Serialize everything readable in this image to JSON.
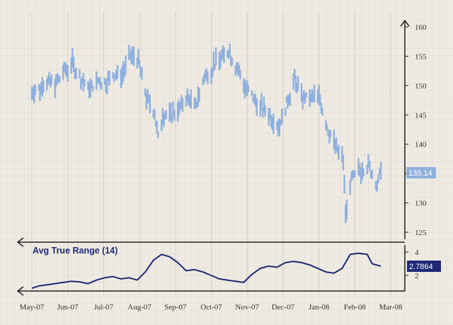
{
  "chart_data": [
    {
      "type": "bar",
      "subtype": "ohlc-price",
      "x_tick_labels": [
        "May-07",
        "Jun-07",
        "Jul-07",
        "Aug-07",
        "Sep-07",
        "Oct-07",
        "Nov-07",
        "Dec-07",
        "Jan-08",
        "Feb-08",
        "Mar-08"
      ],
      "y_ticks": [
        125,
        130,
        135,
        140,
        145,
        150,
        155,
        160
      ],
      "ylim": [
        122,
        161
      ],
      "y_axis_side": "right",
      "last_value_label": "135.14",
      "color": "#8fb0de",
      "anchors": [
        [
          "2007-05-01",
          149
        ],
        [
          "2007-05-08",
          149.5
        ],
        [
          "2007-05-15",
          150.8
        ],
        [
          "2007-05-22",
          150.5
        ],
        [
          "2007-05-29",
          152.5
        ],
        [
          "2007-06-05",
          153.5
        ],
        [
          "2007-06-12",
          151
        ],
        [
          "2007-06-19",
          149.5
        ],
        [
          "2007-06-26",
          151
        ],
        [
          "2007-07-03",
          150.5
        ],
        [
          "2007-07-10",
          152
        ],
        [
          "2007-07-17",
          151.5
        ],
        [
          "2007-07-24",
          155
        ],
        [
          "2007-07-31",
          154.5
        ],
        [
          "2007-08-07",
          148
        ],
        [
          "2007-08-14",
          145.5
        ],
        [
          "2007-08-17",
          141
        ],
        [
          "2007-08-21",
          145
        ],
        [
          "2007-08-28",
          145
        ],
        [
          "2007-09-04",
          146
        ],
        [
          "2007-09-11",
          148
        ],
        [
          "2007-09-18",
          146.5
        ],
        [
          "2007-09-25",
          151.5
        ],
        [
          "2007-10-02",
          153
        ],
        [
          "2007-10-09",
          155
        ],
        [
          "2007-10-16",
          156
        ],
        [
          "2007-10-23",
          153
        ],
        [
          "2007-10-30",
          150
        ],
        [
          "2007-11-06",
          148
        ],
        [
          "2007-11-13",
          146
        ],
        [
          "2007-11-20",
          145
        ],
        [
          "2007-11-27",
          143
        ],
        [
          "2007-12-04",
          147
        ],
        [
          "2007-12-11",
          151
        ],
        [
          "2007-12-18",
          148
        ],
        [
          "2007-12-25",
          147.5
        ],
        [
          "2008-01-01",
          148.5
        ],
        [
          "2008-01-08",
          143
        ],
        [
          "2008-01-15",
          140
        ],
        [
          "2008-01-22",
          137
        ],
        [
          "2008-01-24",
          128
        ],
        [
          "2008-01-29",
          134
        ],
        [
          "2008-02-05",
          135.5
        ],
        [
          "2008-02-12",
          136.5
        ],
        [
          "2008-02-19",
          133
        ],
        [
          "2008-02-22",
          135.14
        ]
      ]
    },
    {
      "type": "line",
      "title": "Avg True Range (14)",
      "x_tick_labels": [
        "May-07",
        "Jun-07",
        "Jul-07",
        "Aug-07",
        "Sep-07",
        "Oct-07",
        "Nov-07",
        "Dec-07",
        "Jan-08",
        "Feb-08",
        "Mar-08"
      ],
      "y_ticks": [
        2,
        4
      ],
      "ylim": [
        0.4,
        4.6
      ],
      "y_axis_side": "right",
      "last_value_label": "2.7864",
      "color": "#1e2a78",
      "x": [
        "2007-05-01",
        "2007-05-07",
        "2007-05-14",
        "2007-05-21",
        "2007-05-28",
        "2007-06-04",
        "2007-06-11",
        "2007-06-18",
        "2007-06-25",
        "2007-07-02",
        "2007-07-09",
        "2007-07-16",
        "2007-07-23",
        "2007-07-30",
        "2007-08-06",
        "2007-08-13",
        "2007-08-20",
        "2007-08-27",
        "2007-09-03",
        "2007-09-10",
        "2007-09-17",
        "2007-09-24",
        "2007-10-01",
        "2007-10-08",
        "2007-10-15",
        "2007-10-22",
        "2007-10-29",
        "2007-11-05",
        "2007-11-12",
        "2007-11-19",
        "2007-11-26",
        "2007-12-03",
        "2007-12-10",
        "2007-12-17",
        "2007-12-24",
        "2007-12-31",
        "2008-01-07",
        "2008-01-14",
        "2008-01-21",
        "2008-01-28",
        "2008-02-04",
        "2008-02-11",
        "2008-02-15",
        "2008-02-22"
      ],
      "y": [
        0.9,
        1.1,
        1.2,
        1.3,
        1.4,
        1.5,
        1.45,
        1.3,
        1.6,
        1.8,
        1.9,
        1.7,
        1.8,
        1.6,
        2.3,
        3.3,
        3.8,
        3.6,
        3.1,
        2.4,
        2.5,
        2.3,
        2.0,
        1.7,
        1.6,
        1.5,
        1.4,
        2.1,
        2.6,
        2.8,
        2.7,
        3.1,
        3.2,
        3.1,
        2.9,
        2.6,
        2.3,
        2.2,
        2.6,
        3.8,
        3.9,
        3.8,
        3.0,
        2.7864
      ]
    }
  ]
}
